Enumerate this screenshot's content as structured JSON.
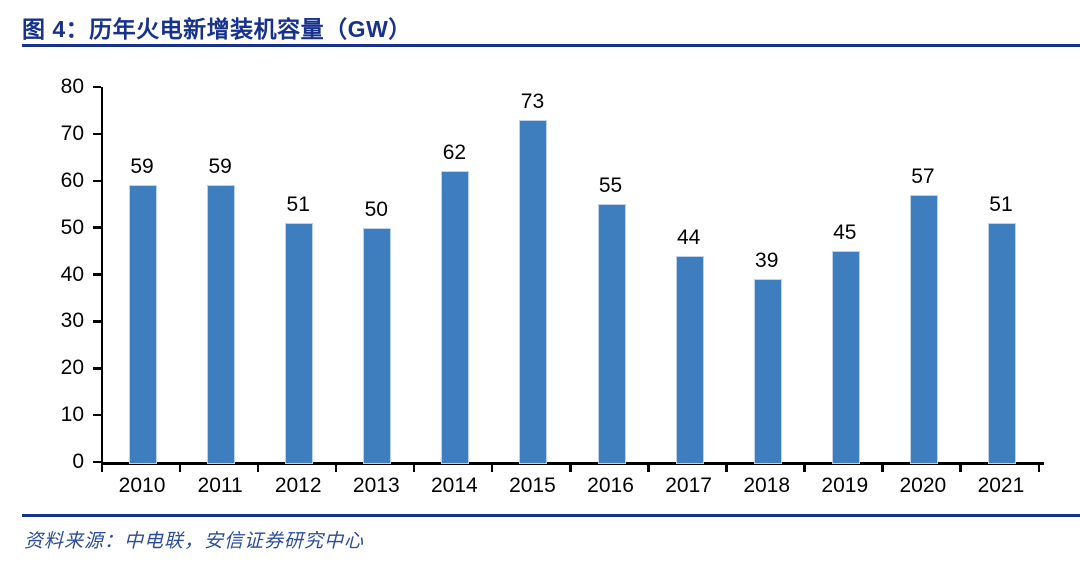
{
  "figure": {
    "title": "图 4：历年火电新增装机容量（GW）",
    "source": "资料来源：中电联，安信证券研究中心"
  },
  "colors": {
    "title_navy": "#16328C",
    "rule_navy": "#16328C",
    "source_blue": "#2B4C9B",
    "bar_fill": "#3E7DBE",
    "bar_border": "#BED2EB",
    "axis_black": "#000000",
    "label_black": "#000000"
  },
  "chart_data": {
    "type": "bar",
    "title": "历年火电新增装机容量（GW）",
    "categories": [
      "2010",
      "2011",
      "2012",
      "2013",
      "2014",
      "2015",
      "2016",
      "2017",
      "2018",
      "2019",
      "2020",
      "2021"
    ],
    "values": [
      59,
      59,
      51,
      50,
      62,
      73,
      55,
      44,
      39,
      45,
      57,
      51
    ],
    "xlabel": "",
    "ylabel": "",
    "ylim": [
      0,
      80
    ],
    "ytick_step": 10,
    "grid": false,
    "legend": false,
    "data_labels": true
  }
}
